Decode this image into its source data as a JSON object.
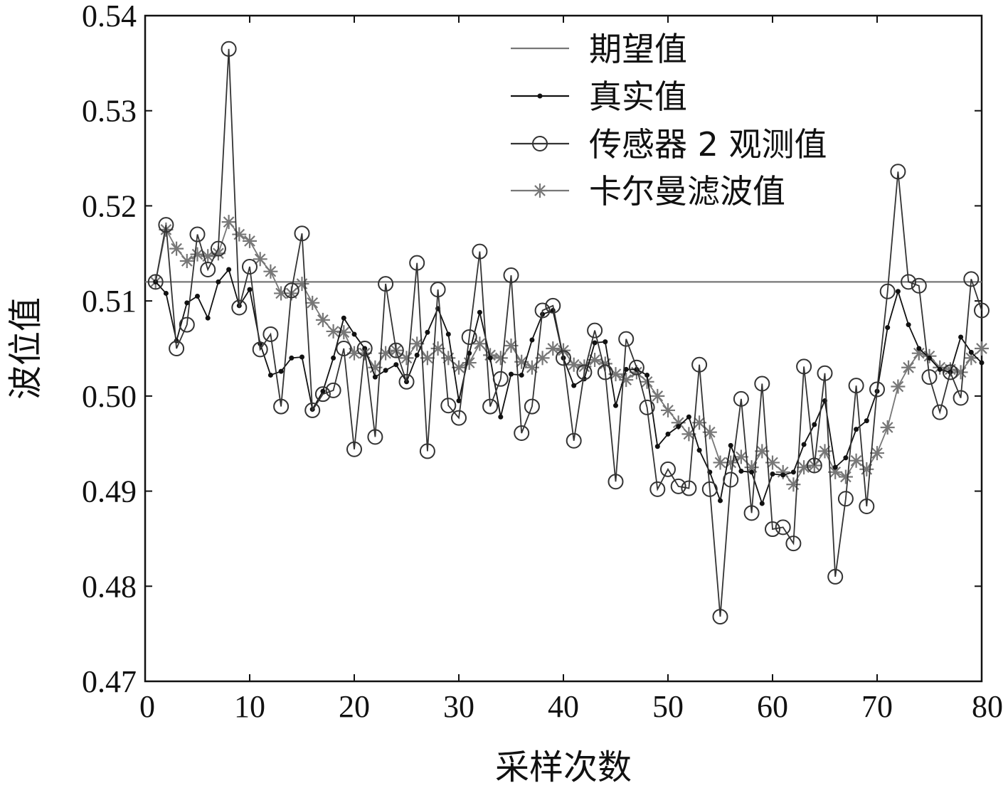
{
  "chart_data": {
    "type": "line",
    "xlabel": "采样次数",
    "ylabel": "波位值",
    "xlim": [
      0,
      80
    ],
    "ylim": [
      0.47,
      0.54
    ],
    "xticks": [
      0,
      10,
      20,
      30,
      40,
      50,
      60,
      70,
      80
    ],
    "yticks": [
      "0.47",
      "0.48",
      "0.49",
      "0.50",
      "0.51",
      "0.52",
      "0.53",
      "0.54"
    ],
    "grid": false,
    "legend_position": "top-right",
    "x": [
      1,
      2,
      3,
      4,
      5,
      6,
      7,
      8,
      9,
      10,
      11,
      12,
      13,
      14,
      15,
      16,
      17,
      18,
      19,
      20,
      21,
      22,
      23,
      24,
      25,
      26,
      27,
      28,
      29,
      30,
      31,
      32,
      33,
      34,
      35,
      36,
      37,
      38,
      39,
      40,
      41,
      42,
      43,
      44,
      45,
      46,
      47,
      48,
      49,
      50,
      51,
      52,
      53,
      54,
      55,
      56,
      57,
      58,
      59,
      60,
      61,
      62,
      63,
      64,
      65,
      66,
      67,
      68,
      69,
      70,
      71,
      72,
      73,
      74,
      75,
      76,
      77,
      78,
      79,
      80
    ],
    "series": [
      {
        "name": "期望值",
        "marker": "none",
        "color": "#777777",
        "values": [
          0.512,
          0.512,
          0.512,
          0.512,
          0.512,
          0.512,
          0.512,
          0.512,
          0.512,
          0.512,
          0.512,
          0.512,
          0.512,
          0.512,
          0.512,
          0.512,
          0.512,
          0.512,
          0.512,
          0.512,
          0.512,
          0.512,
          0.512,
          0.512,
          0.512,
          0.512,
          0.512,
          0.512,
          0.512,
          0.512,
          0.512,
          0.512,
          0.512,
          0.512,
          0.512,
          0.512,
          0.512,
          0.512,
          0.512,
          0.512,
          0.512,
          0.512,
          0.512,
          0.512,
          0.512,
          0.512,
          0.512,
          0.512,
          0.512,
          0.512,
          0.512,
          0.512,
          0.512,
          0.512,
          0.512,
          0.512,
          0.512,
          0.512,
          0.512,
          0.512,
          0.512,
          0.512,
          0.512,
          0.512,
          0.512,
          0.512,
          0.512,
          0.512,
          0.512,
          0.512,
          0.512,
          0.512,
          0.512,
          0.512,
          0.512,
          0.512,
          0.512,
          0.512,
          0.512,
          0.512
        ]
      },
      {
        "name": "真实值",
        "marker": "dot",
        "color": "#111111",
        "values": [
          0.512,
          0.5108,
          0.5058,
          0.5098,
          0.5105,
          0.5082,
          0.512,
          0.5133,
          0.5095,
          0.5112,
          0.5055,
          0.5022,
          0.5026,
          0.504,
          0.5041,
          0.4986,
          0.5005,
          0.504,
          0.5082,
          0.5065,
          0.505,
          0.502,
          0.5027,
          0.5033,
          0.5015,
          0.5043,
          0.5067,
          0.5092,
          0.5065,
          0.4995,
          0.5045,
          0.5088,
          0.504,
          0.4978,
          0.5023,
          0.5022,
          0.5059,
          0.5086,
          0.509,
          0.504,
          0.5011,
          0.5018,
          0.5056,
          0.5057,
          0.499,
          0.5028,
          0.5028,
          0.5022,
          0.4947,
          0.496,
          0.4968,
          0.4978,
          0.4943,
          0.492,
          0.489,
          0.4948,
          0.4921,
          0.492,
          0.4887,
          0.4918,
          0.4917,
          0.492,
          0.4949,
          0.497,
          0.4995,
          0.4925,
          0.4935,
          0.4965,
          0.4974,
          0.5005,
          0.5072,
          0.511,
          0.5075,
          0.505,
          0.504,
          0.5028,
          0.5025,
          0.5062,
          0.5046,
          0.5035
        ]
      },
      {
        "name": "传感器 2 观测值",
        "marker": "circle",
        "color": "#333333",
        "values": [
          0.512,
          0.518,
          0.505,
          0.5075,
          0.517,
          0.5133,
          0.5155,
          0.5365,
          0.5093,
          0.5136,
          0.5049,
          0.5065,
          0.4989,
          0.5111,
          0.5171,
          0.4985,
          0.5002,
          0.5006,
          0.505,
          0.4944,
          0.505,
          0.4957,
          0.5118,
          0.5048,
          0.5015,
          0.514,
          0.4942,
          0.5112,
          0.499,
          0.4977,
          0.5062,
          0.5152,
          0.4989,
          0.5018,
          0.5127,
          0.4961,
          0.4989,
          0.509,
          0.5095,
          0.504,
          0.4953,
          0.5025,
          0.5069,
          0.5025,
          0.491,
          0.506,
          0.503,
          0.4988,
          0.4902,
          0.4923,
          0.4905,
          0.4903,
          0.5033,
          0.4902,
          0.4768,
          0.4912,
          0.4997,
          0.4877,
          0.5013,
          0.486,
          0.4862,
          0.4845,
          0.5031,
          0.4927,
          0.5024,
          0.481,
          0.4892,
          0.5011,
          0.4884,
          0.5007,
          0.511,
          0.5236,
          0.512,
          0.5116,
          0.502,
          0.4983,
          0.5025,
          0.4998,
          0.5123,
          0.509
        ]
      },
      {
        "name": "卡尔曼滤波值",
        "marker": "star",
        "color": "#777777",
        "values": [
          0.512,
          0.5175,
          0.5155,
          0.5142,
          0.5149,
          0.5147,
          0.515,
          0.5183,
          0.517,
          0.5163,
          0.5144,
          0.5131,
          0.5108,
          0.5108,
          0.5118,
          0.5098,
          0.508,
          0.5068,
          0.5067,
          0.5045,
          0.5045,
          0.503,
          0.5045,
          0.5048,
          0.504,
          0.5055,
          0.504,
          0.505,
          0.504,
          0.503,
          0.5035,
          0.5055,
          0.5043,
          0.504,
          0.5053,
          0.5036,
          0.503,
          0.504,
          0.505,
          0.5048,
          0.5033,
          0.5031,
          0.5038,
          0.5034,
          0.5023,
          0.5017,
          0.5025,
          0.5015,
          0.5,
          0.4985,
          0.4972,
          0.496,
          0.4972,
          0.4962,
          0.493,
          0.493,
          0.4936,
          0.4925,
          0.4942,
          0.493,
          0.492,
          0.4907,
          0.4925,
          0.4927,
          0.4942,
          0.492,
          0.4915,
          0.4932,
          0.4923,
          0.494,
          0.4967,
          0.501,
          0.503,
          0.5045,
          0.5042,
          0.503,
          0.5028,
          0.5025,
          0.504,
          0.505
        ]
      }
    ]
  }
}
